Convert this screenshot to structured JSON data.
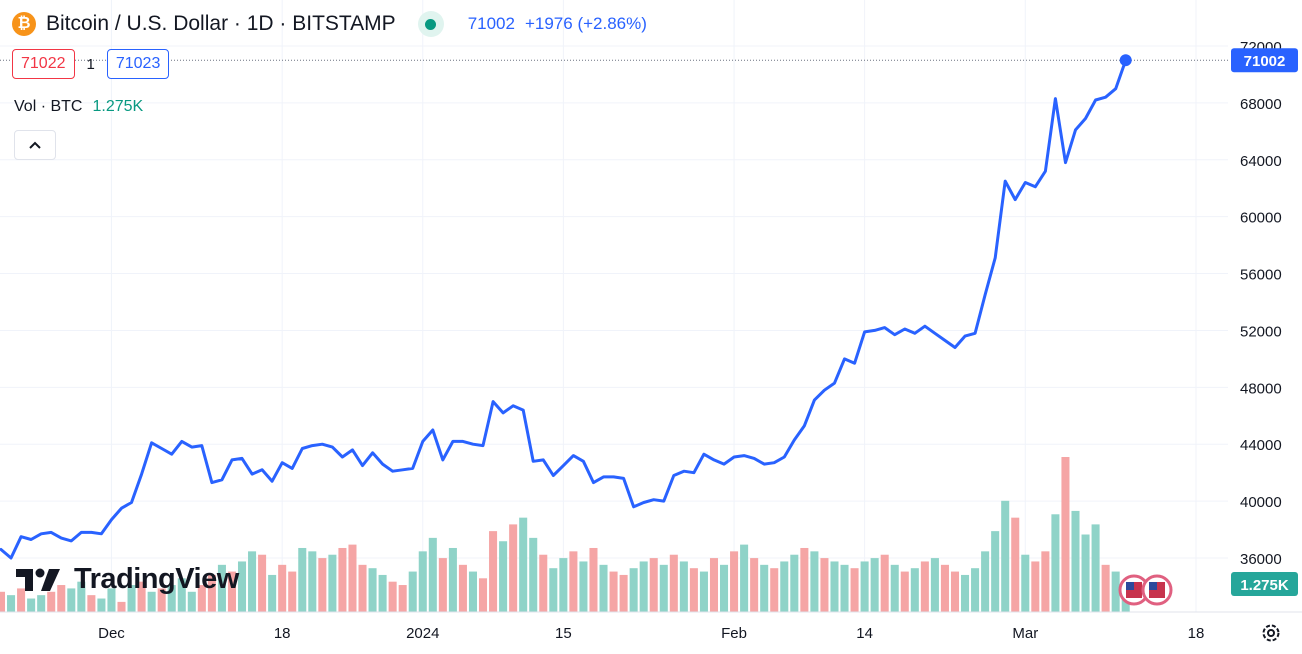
{
  "header": {
    "title": "Bitcoin / U.S. Dollar · 1D · BITSTAMP",
    "coin_symbol": "₿",
    "last_price": "71002",
    "change": "+1976 (+2.86%)",
    "bid": "71022",
    "spread": "1",
    "ask": "71023",
    "volume_label": "Vol · BTC",
    "volume_value": "1.275K"
  },
  "branding": {
    "logo_text": "TradingView"
  },
  "icons": {
    "coin": "bitcoin-icon",
    "status": "market-open-dot-icon",
    "collapse": "chevron-up-icon",
    "settings": "gear-icon",
    "events": "us-flag-icon"
  },
  "colors": {
    "line": "#2962ff",
    "vol_up": "#8fd3c8",
    "vol_down": "#f5a5a5",
    "price_tag": "#2962ff",
    "vol_tag": "#26a69a",
    "grid": "#f0f3fa"
  },
  "chart_data": {
    "type": "line",
    "title": "Bitcoin / U.S. Dollar · 1D · BITSTAMP",
    "y_ticks": [
      36000,
      40000,
      44000,
      48000,
      52000,
      56000,
      60000,
      64000,
      68000,
      72000
    ],
    "y_tick_labels": [
      "36000",
      "40000",
      "44000",
      "48000",
      "52000",
      "56000",
      "60000",
      "64000",
      "68000",
      "72000"
    ],
    "x_tick_labels": [
      {
        "label": "Dec",
        "date": "2023-12-01"
      },
      {
        "label": "18",
        "date": "2023-12-18"
      },
      {
        "label": "2024",
        "date": "2024-01-01"
      },
      {
        "label": "15",
        "date": "2024-01-15"
      },
      {
        "label": "Feb",
        "date": "2024-02-01"
      },
      {
        "label": "14",
        "date": "2024-02-14"
      },
      {
        "label": "Mar",
        "date": "2024-03-01"
      },
      {
        "label": "18",
        "date": "2024-03-18"
      }
    ],
    "x_range": [
      "2023-11-20",
      "2024-03-18"
    ],
    "ylim": [
      34000,
      72500
    ],
    "last_value_label": "71002",
    "volume_value_label": "1.275K",
    "grid": true,
    "series": [
      {
        "values": [
          [
            "2023-11-20",
            36600
          ],
          [
            "2023-11-21",
            36000
          ],
          [
            "2023-11-22",
            37500
          ],
          [
            "2023-11-23",
            37300
          ],
          [
            "2023-11-24",
            37700
          ],
          [
            "2023-11-25",
            37800
          ],
          [
            "2023-11-26",
            37400
          ],
          [
            "2023-11-27",
            37200
          ],
          [
            "2023-11-28",
            37800
          ],
          [
            "2023-11-29",
            37800
          ],
          [
            "2023-11-30",
            37700
          ],
          [
            "2023-12-01",
            38700
          ],
          [
            "2023-12-02",
            39500
          ],
          [
            "2023-12-03",
            39900
          ],
          [
            "2023-12-04",
            41900
          ],
          [
            "2023-12-05",
            44100
          ],
          [
            "2023-12-06",
            43700
          ],
          [
            "2023-12-07",
            43300
          ],
          [
            "2023-12-08",
            44200
          ],
          [
            "2023-12-09",
            43800
          ],
          [
            "2023-12-10",
            43900
          ],
          [
            "2023-12-11",
            41300
          ],
          [
            "2023-12-12",
            41500
          ],
          [
            "2023-12-13",
            42900
          ],
          [
            "2023-12-14",
            43000
          ],
          [
            "2023-12-15",
            41900
          ],
          [
            "2023-12-16",
            42200
          ],
          [
            "2023-12-17",
            41400
          ],
          [
            "2023-12-18",
            42700
          ],
          [
            "2023-12-19",
            42300
          ],
          [
            "2023-12-20",
            43700
          ],
          [
            "2023-12-21",
            43900
          ],
          [
            "2023-12-22",
            44000
          ],
          [
            "2023-12-23",
            43800
          ],
          [
            "2023-12-24",
            43100
          ],
          [
            "2023-12-25",
            43600
          ],
          [
            "2023-12-26",
            42500
          ],
          [
            "2023-12-27",
            43400
          ],
          [
            "2023-12-28",
            42600
          ],
          [
            "2023-12-29",
            42100
          ],
          [
            "2023-12-30",
            42200
          ],
          [
            "2023-12-31",
            42300
          ],
          [
            "2024-01-01",
            44200
          ],
          [
            "2024-01-02",
            45000
          ],
          [
            "2024-01-03",
            42900
          ],
          [
            "2024-01-04",
            44200
          ],
          [
            "2024-01-05",
            44200
          ],
          [
            "2024-01-06",
            44000
          ],
          [
            "2024-01-07",
            43900
          ],
          [
            "2024-01-08",
            47000
          ],
          [
            "2024-01-09",
            46200
          ],
          [
            "2024-01-10",
            46700
          ],
          [
            "2024-01-11",
            46400
          ],
          [
            "2024-01-12",
            42800
          ],
          [
            "2024-01-13",
            42900
          ],
          [
            "2024-01-14",
            41800
          ],
          [
            "2024-01-15",
            42500
          ],
          [
            "2024-01-16",
            43200
          ],
          [
            "2024-01-17",
            42800
          ],
          [
            "2024-01-18",
            41300
          ],
          [
            "2024-01-19",
            41700
          ],
          [
            "2024-01-20",
            41700
          ],
          [
            "2024-01-21",
            41600
          ],
          [
            "2024-01-22",
            39600
          ],
          [
            "2024-01-23",
            39900
          ],
          [
            "2024-01-24",
            40100
          ],
          [
            "2024-01-25",
            40000
          ],
          [
            "2024-01-26",
            41800
          ],
          [
            "2024-01-27",
            42100
          ],
          [
            "2024-01-28",
            42000
          ],
          [
            "2024-01-29",
            43300
          ],
          [
            "2024-01-30",
            42900
          ],
          [
            "2024-01-31",
            42600
          ],
          [
            "2024-02-01",
            43100
          ],
          [
            "2024-02-02",
            43200
          ],
          [
            "2024-02-03",
            43000
          ],
          [
            "2024-02-04",
            42600
          ],
          [
            "2024-02-05",
            42700
          ],
          [
            "2024-02-06",
            43100
          ],
          [
            "2024-02-07",
            44300
          ],
          [
            "2024-02-08",
            45300
          ],
          [
            "2024-02-09",
            47100
          ],
          [
            "2024-02-10",
            47800
          ],
          [
            "2024-02-11",
            48300
          ],
          [
            "2024-02-12",
            50000
          ],
          [
            "2024-02-13",
            49700
          ],
          [
            "2024-02-14",
            51900
          ],
          [
            "2024-02-15",
            52000
          ],
          [
            "2024-02-16",
            52200
          ],
          [
            "2024-02-17",
            51700
          ],
          [
            "2024-02-18",
            52100
          ],
          [
            "2024-02-19",
            51800
          ],
          [
            "2024-02-20",
            52300
          ],
          [
            "2024-02-21",
            51800
          ],
          [
            "2024-02-22",
            51300
          ],
          [
            "2024-02-23",
            50800
          ],
          [
            "2024-02-24",
            51600
          ],
          [
            "2024-02-25",
            51800
          ],
          [
            "2024-02-26",
            54500
          ],
          [
            "2024-02-27",
            57100
          ],
          [
            "2024-02-28",
            62500
          ],
          [
            "2024-02-29",
            61200
          ],
          [
            "2024-03-01",
            62400
          ],
          [
            "2024-03-02",
            62100
          ],
          [
            "2024-03-03",
            63200
          ],
          [
            "2024-03-04",
            68300
          ],
          [
            "2024-03-05",
            63800
          ],
          [
            "2024-03-06",
            66100
          ],
          [
            "2024-03-07",
            66900
          ],
          [
            "2024-03-08",
            68200
          ],
          [
            "2024-03-09",
            68400
          ],
          [
            "2024-03-10",
            69000
          ],
          [
            "2024-03-11",
            71002
          ]
        ]
      }
    ],
    "volume": [
      [
        "2023-11-20",
        6,
        "down"
      ],
      [
        "2023-11-21",
        5,
        "up"
      ],
      [
        "2023-11-22",
        7,
        "down"
      ],
      [
        "2023-11-23",
        4,
        "up"
      ],
      [
        "2023-11-24",
        5,
        "up"
      ],
      [
        "2023-11-25",
        6,
        "down"
      ],
      [
        "2023-11-26",
        8,
        "down"
      ],
      [
        "2023-11-27",
        7,
        "up"
      ],
      [
        "2023-11-28",
        9,
        "up"
      ],
      [
        "2023-11-29",
        5,
        "down"
      ],
      [
        "2023-11-30",
        4,
        "up"
      ],
      [
        "2023-12-01",
        7,
        "up"
      ],
      [
        "2023-12-02",
        3,
        "down"
      ],
      [
        "2023-12-03",
        8,
        "up"
      ],
      [
        "2023-12-04",
        9,
        "down"
      ],
      [
        "2023-12-05",
        6,
        "up"
      ],
      [
        "2023-12-06",
        7,
        "down"
      ],
      [
        "2023-12-07",
        8,
        "up"
      ],
      [
        "2023-12-08",
        10,
        "up"
      ],
      [
        "2023-12-09",
        6,
        "up"
      ],
      [
        "2023-12-10",
        8,
        "down"
      ],
      [
        "2023-12-11",
        11,
        "down"
      ],
      [
        "2023-12-12",
        14,
        "up"
      ],
      [
        "2023-12-13",
        12,
        "down"
      ],
      [
        "2023-12-14",
        15,
        "up"
      ],
      [
        "2023-12-15",
        18,
        "up"
      ],
      [
        "2023-12-16",
        17,
        "down"
      ],
      [
        "2023-12-17",
        11,
        "up"
      ],
      [
        "2023-12-18",
        14,
        "down"
      ],
      [
        "2023-12-19",
        12,
        "down"
      ],
      [
        "2023-12-20",
        19,
        "up"
      ],
      [
        "2023-12-21",
        18,
        "up"
      ],
      [
        "2023-12-22",
        16,
        "down"
      ],
      [
        "2023-12-23",
        17,
        "up"
      ],
      [
        "2023-12-24",
        19,
        "down"
      ],
      [
        "2023-12-25",
        20,
        "down"
      ],
      [
        "2023-12-26",
        14,
        "down"
      ],
      [
        "2023-12-27",
        13,
        "up"
      ],
      [
        "2023-12-28",
        11,
        "up"
      ],
      [
        "2023-12-29",
        9,
        "down"
      ],
      [
        "2023-12-30",
        8,
        "down"
      ],
      [
        "2023-12-31",
        12,
        "up"
      ],
      [
        "2024-01-01",
        18,
        "up"
      ],
      [
        "2024-01-02",
        22,
        "up"
      ],
      [
        "2024-01-03",
        16,
        "down"
      ],
      [
        "2024-01-04",
        19,
        "up"
      ],
      [
        "2024-01-05",
        14,
        "down"
      ],
      [
        "2024-01-06",
        12,
        "up"
      ],
      [
        "2024-01-07",
        10,
        "down"
      ],
      [
        "2024-01-08",
        24,
        "down"
      ],
      [
        "2024-01-09",
        21,
        "up"
      ],
      [
        "2024-01-10",
        26,
        "down"
      ],
      [
        "2024-01-11",
        28,
        "up"
      ],
      [
        "2024-01-12",
        22,
        "up"
      ],
      [
        "2024-01-13",
        17,
        "down"
      ],
      [
        "2024-01-14",
        13,
        "up"
      ],
      [
        "2024-01-15",
        16,
        "up"
      ],
      [
        "2024-01-16",
        18,
        "down"
      ],
      [
        "2024-01-17",
        15,
        "up"
      ],
      [
        "2024-01-18",
        19,
        "down"
      ],
      [
        "2024-01-19",
        14,
        "up"
      ],
      [
        "2024-01-20",
        12,
        "down"
      ],
      [
        "2024-01-21",
        11,
        "down"
      ],
      [
        "2024-01-22",
        13,
        "up"
      ],
      [
        "2024-01-23",
        15,
        "up"
      ],
      [
        "2024-01-24",
        16,
        "down"
      ],
      [
        "2024-01-25",
        14,
        "up"
      ],
      [
        "2024-01-26",
        17,
        "down"
      ],
      [
        "2024-01-27",
        15,
        "up"
      ],
      [
        "2024-01-28",
        13,
        "down"
      ],
      [
        "2024-01-29",
        12,
        "up"
      ],
      [
        "2024-01-30",
        16,
        "down"
      ],
      [
        "2024-01-31",
        14,
        "up"
      ],
      [
        "2024-02-01",
        18,
        "down"
      ],
      [
        "2024-02-02",
        20,
        "up"
      ],
      [
        "2024-02-03",
        16,
        "down"
      ],
      [
        "2024-02-04",
        14,
        "up"
      ],
      [
        "2024-02-05",
        13,
        "down"
      ],
      [
        "2024-02-06",
        15,
        "up"
      ],
      [
        "2024-02-07",
        17,
        "up"
      ],
      [
        "2024-02-08",
        19,
        "down"
      ],
      [
        "2024-02-09",
        18,
        "up"
      ],
      [
        "2024-02-10",
        16,
        "down"
      ],
      [
        "2024-02-11",
        15,
        "up"
      ],
      [
        "2024-02-12",
        14,
        "up"
      ],
      [
        "2024-02-13",
        13,
        "down"
      ],
      [
        "2024-02-14",
        15,
        "up"
      ],
      [
        "2024-02-15",
        16,
        "up"
      ],
      [
        "2024-02-16",
        17,
        "down"
      ],
      [
        "2024-02-17",
        14,
        "up"
      ],
      [
        "2024-02-18",
        12,
        "down"
      ],
      [
        "2024-02-19",
        13,
        "up"
      ],
      [
        "2024-02-20",
        15,
        "down"
      ],
      [
        "2024-02-21",
        16,
        "up"
      ],
      [
        "2024-02-22",
        14,
        "down"
      ],
      [
        "2024-02-23",
        12,
        "down"
      ],
      [
        "2024-02-24",
        11,
        "up"
      ],
      [
        "2024-02-25",
        13,
        "up"
      ],
      [
        "2024-02-26",
        18,
        "up"
      ],
      [
        "2024-02-27",
        24,
        "up"
      ],
      [
        "2024-02-28",
        33,
        "up"
      ],
      [
        "2024-02-29",
        28,
        "down"
      ],
      [
        "2024-03-01",
        17,
        "up"
      ],
      [
        "2024-03-02",
        15,
        "down"
      ],
      [
        "2024-03-03",
        18,
        "down"
      ],
      [
        "2024-03-04",
        29,
        "up"
      ],
      [
        "2024-03-05",
        46,
        "down"
      ],
      [
        "2024-03-06",
        30,
        "up"
      ],
      [
        "2024-03-07",
        23,
        "up"
      ],
      [
        "2024-03-08",
        26,
        "up"
      ],
      [
        "2024-03-09",
        14,
        "down"
      ],
      [
        "2024-03-10",
        12,
        "up"
      ],
      [
        "2024-03-11",
        9,
        "up"
      ]
    ]
  }
}
